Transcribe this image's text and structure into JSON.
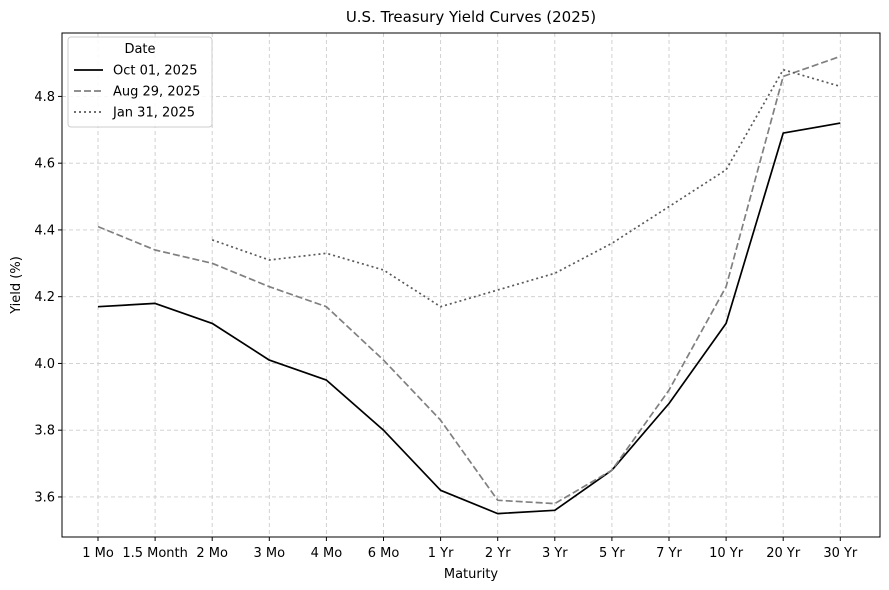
{
  "chart_data": {
    "type": "line",
    "title": "U.S. Treasury Yield Curves (2025)",
    "xlabel": "Maturity",
    "ylabel": "Yield (%)",
    "categories": [
      "1 Mo",
      "1.5 Month",
      "2 Mo",
      "3 Mo",
      "4 Mo",
      "6 Mo",
      "1 Yr",
      "2 Yr",
      "3 Yr",
      "5 Yr",
      "7 Yr",
      "10 Yr",
      "20 Yr",
      "30 Yr"
    ],
    "ylim": [
      3.48,
      4.99
    ],
    "yticks": [
      3.6,
      3.8,
      4.0,
      4.2,
      4.4,
      4.6,
      4.8
    ],
    "ytick_labels": [
      "3.6",
      "3.8",
      "4.0",
      "4.2",
      "4.4",
      "4.6",
      "4.8"
    ],
    "grid": true,
    "legend": {
      "title": "Date",
      "placement": "top-left"
    },
    "series": [
      {
        "name": "Oct 01, 2025",
        "color": "#000000",
        "style": "solid",
        "values": [
          4.17,
          4.18,
          4.12,
          4.01,
          3.95,
          3.8,
          3.62,
          3.55,
          3.56,
          3.68,
          3.88,
          4.12,
          4.69,
          4.72
        ]
      },
      {
        "name": "Aug 29, 2025",
        "color": "#808080",
        "style": "dashed",
        "values": [
          4.41,
          4.34,
          4.3,
          4.23,
          4.17,
          4.01,
          3.83,
          3.59,
          3.58,
          3.68,
          3.92,
          4.23,
          4.86,
          4.92
        ]
      },
      {
        "name": "Jan 31, 2025",
        "color": "#595959",
        "style": "dotted",
        "values": [
          null,
          null,
          4.37,
          4.31,
          4.33,
          4.28,
          4.17,
          4.22,
          4.27,
          4.36,
          4.47,
          4.58,
          4.88,
          4.83
        ]
      }
    ]
  }
}
